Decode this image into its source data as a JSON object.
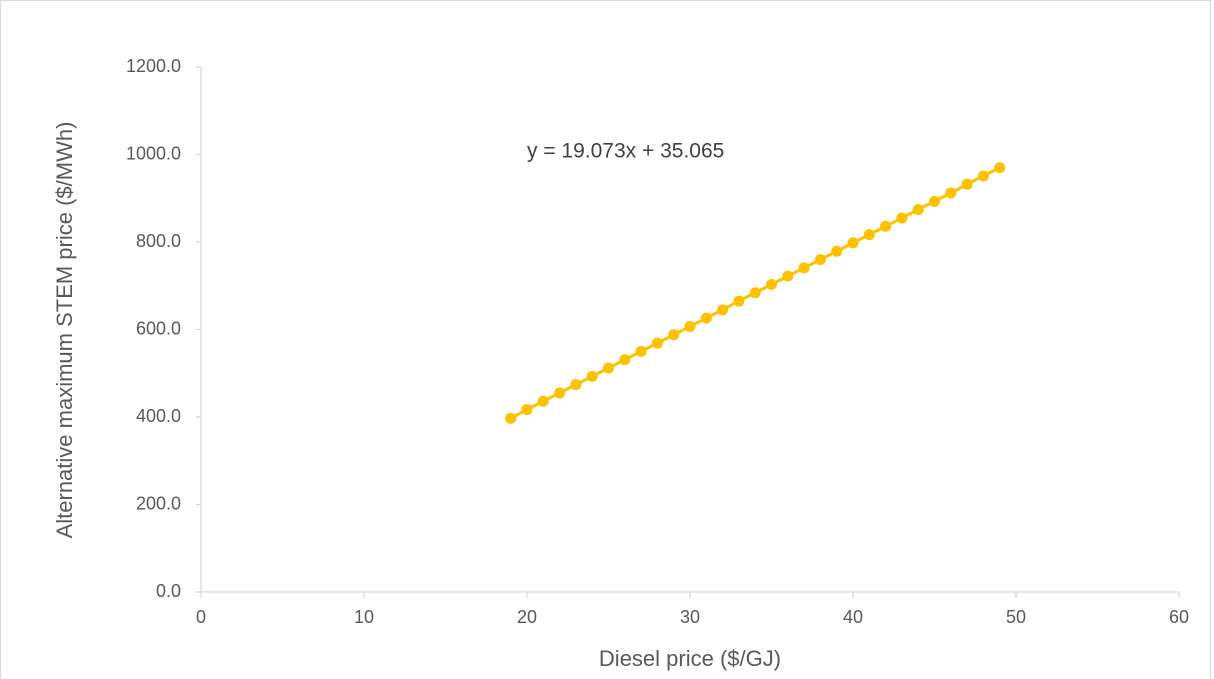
{
  "chart_data": {
    "type": "scatter",
    "x_label": "Diesel price ($/GJ)",
    "y_label": "Alternative maximum STEM price ($/MWh)",
    "annotation": "y = 19.073x + 35.065",
    "series": [
      {
        "color": "#FFC000",
        "x": [
          19,
          20,
          21,
          22,
          23,
          24,
          25,
          26,
          27,
          28,
          29,
          30,
          31,
          32,
          33,
          34,
          35,
          36,
          37,
          38,
          39,
          40,
          41,
          42,
          43,
          44,
          45,
          46,
          47,
          48,
          49
        ],
        "values": [
          397,
          417,
          436,
          455,
          474,
          493,
          512,
          531,
          550,
          569,
          588,
          607,
          626,
          645,
          665,
          684,
          703,
          722,
          741,
          760,
          779,
          798,
          817,
          836,
          855,
          874,
          893,
          912,
          932,
          951,
          970
        ]
      }
    ],
    "xlim": [
      0,
      60
    ],
    "xticks": [
      0,
      10,
      20,
      30,
      40,
      50,
      60
    ],
    "ylim": [
      0,
      1200
    ],
    "yticks": [
      {
        "value": 0,
        "label": "0.0"
      },
      {
        "value": 200,
        "label": "200.0"
      },
      {
        "value": 400,
        "label": "400.0"
      },
      {
        "value": 600,
        "label": "600.0"
      },
      {
        "value": 800,
        "label": "800.0"
      },
      {
        "value": 1000,
        "label": "1000.0"
      },
      {
        "value": 1200,
        "label": "1200.0"
      }
    ],
    "grid": false
  }
}
